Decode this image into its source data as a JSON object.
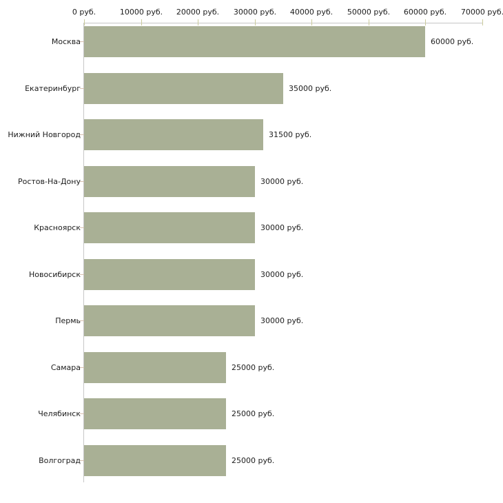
{
  "chart_data": {
    "type": "bar",
    "orientation": "horizontal",
    "title": "",
    "categories": [
      "Москва",
      "Екатеринбург",
      "Нижний Новгород",
      "Ростов-На-Дону",
      "Красноярск",
      "Новосибирск",
      "Пермь",
      "Самара",
      "Челябинск",
      "Волгоград"
    ],
    "values": [
      60000,
      35000,
      31500,
      30000,
      30000,
      30000,
      30000,
      25000,
      25000,
      25000
    ],
    "value_labels": [
      "60000 руб.",
      "35000 руб.",
      "31500 руб.",
      "30000 руб.",
      "30000 руб.",
      "30000 руб.",
      "30000 руб.",
      "25000 руб.",
      "25000 руб.",
      "25000 руб."
    ],
    "unit": "руб.",
    "x_axis": {
      "position": "top",
      "range": [
        0,
        70000
      ],
      "ticks": [
        0,
        10000,
        20000,
        30000,
        40000,
        50000,
        60000,
        70000
      ],
      "tick_labels": [
        "0 руб.",
        "10000 руб.",
        "20000 руб.",
        "30000 руб.",
        "40000 руб.",
        "50000 руб.",
        "60000 руб.",
        "70000 руб."
      ]
    },
    "grid": "off",
    "legend": "none",
    "colors": {
      "bar_fill": "#a9b095",
      "axis_line": "#c6c6c6",
      "x_tick": "#cbcb9c",
      "y_tick": "#d6bfae",
      "text": "#1c1c1c",
      "background": "#ffffff"
    }
  }
}
